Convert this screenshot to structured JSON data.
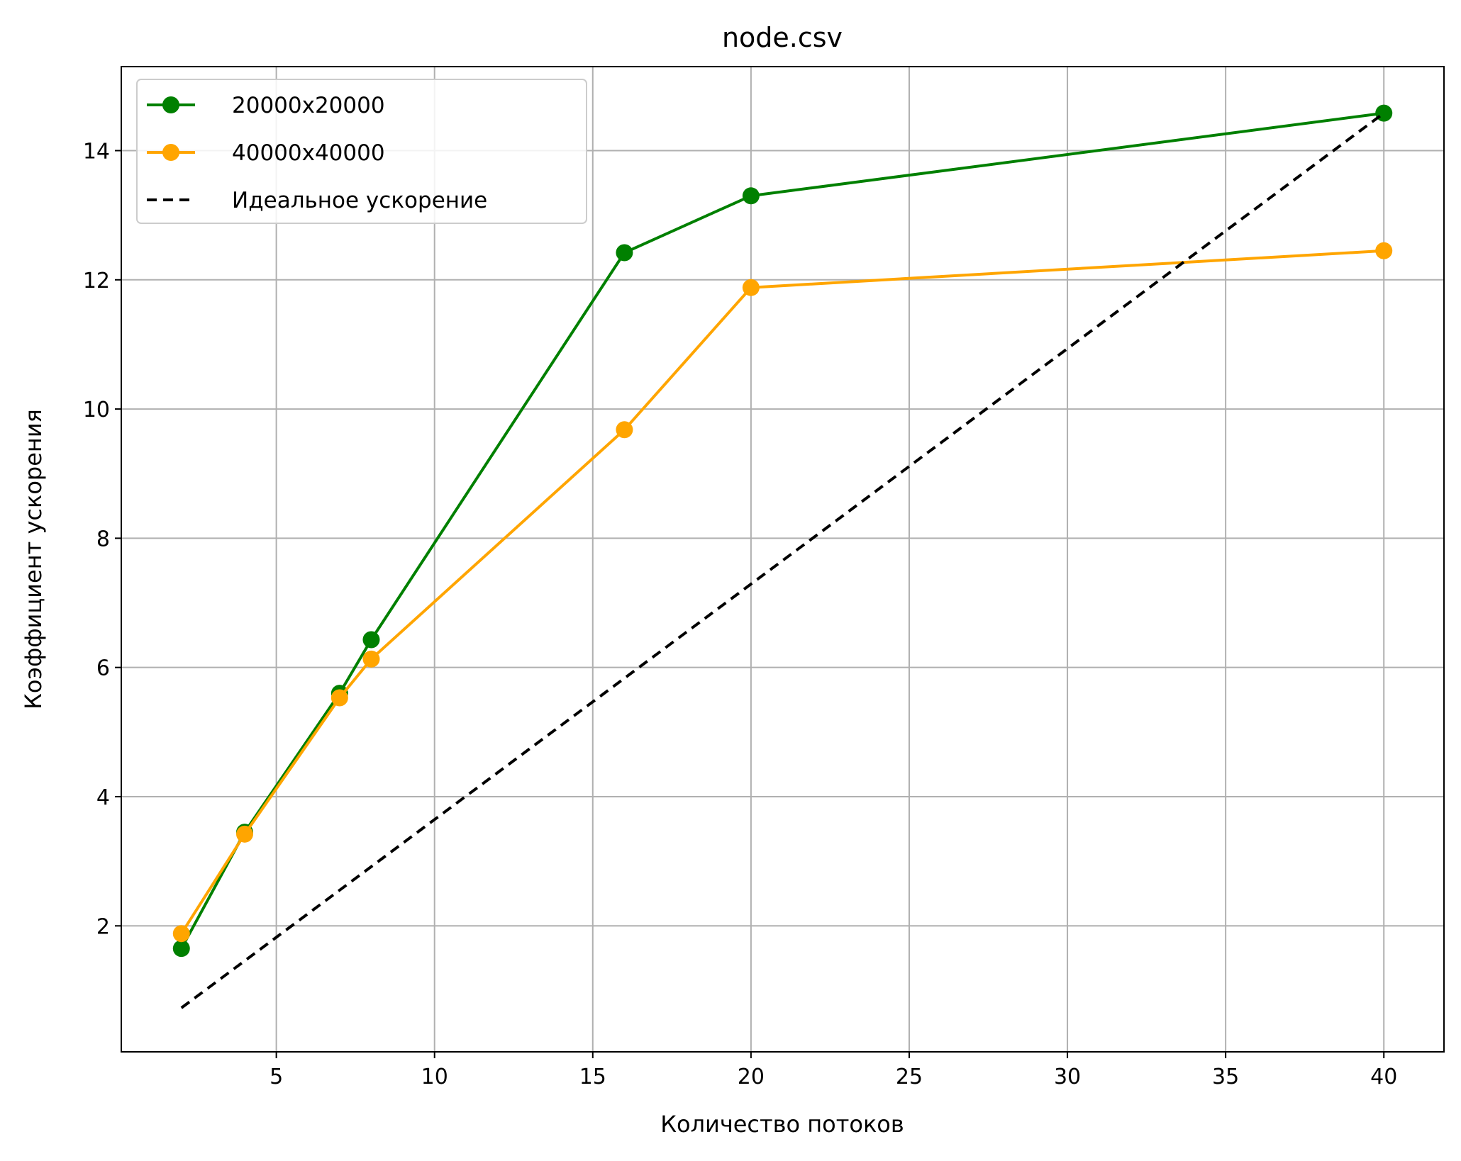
{
  "chart_data": {
    "type": "line",
    "title": "node.csv",
    "xlabel": "Количество потоков",
    "ylabel": "Коэффициент ускорения",
    "xlim": [
      0.1,
      41.9
    ],
    "ylim": [
      0.05,
      15.3
    ],
    "xticks": [
      5,
      10,
      15,
      20,
      25,
      30,
      35,
      40
    ],
    "yticks": [
      2,
      4,
      6,
      8,
      10,
      12,
      14
    ],
    "grid": true,
    "legend_position": "top-left",
    "series": [
      {
        "name": "20000x20000",
        "color": "#008000",
        "style": "solid",
        "marker": "circle",
        "x": [
          2,
          4,
          7,
          8,
          16,
          20,
          40
        ],
        "y": [
          1.65,
          3.45,
          5.6,
          6.43,
          12.42,
          13.3,
          14.58
        ]
      },
      {
        "name": "40000x40000",
        "color": "#FFA500",
        "style": "solid",
        "marker": "circle",
        "x": [
          2,
          4,
          7,
          8,
          16,
          20,
          40
        ],
        "y": [
          1.88,
          3.42,
          5.53,
          6.13,
          9.68,
          11.88,
          12.45
        ]
      },
      {
        "name": "Идеальное ускорение",
        "color": "#000000",
        "style": "dashed",
        "marker": "none",
        "x": [
          2,
          40
        ],
        "y": [
          0.73,
          14.58
        ]
      }
    ]
  }
}
